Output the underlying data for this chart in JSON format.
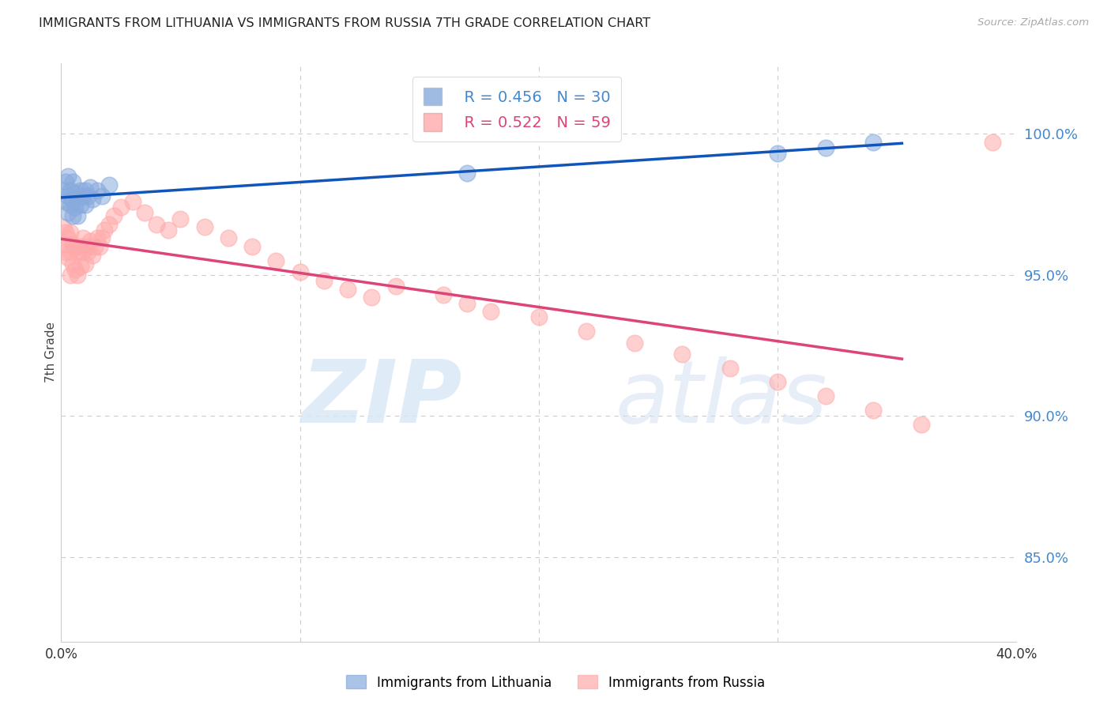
{
  "title": "IMMIGRANTS FROM LITHUANIA VS IMMIGRANTS FROM RUSSIA 7TH GRADE CORRELATION CHART",
  "source": "Source: ZipAtlas.com",
  "ylabel": "7th Grade",
  "legend_blue_label": "Immigrants from Lithuania",
  "legend_pink_label": "Immigrants from Russia",
  "legend_r_blue": "R = 0.456",
  "legend_n_blue": "N = 30",
  "legend_r_pink": "R = 0.522",
  "legend_n_pink": "N = 59",
  "blue_color": "#88AADD",
  "pink_color": "#FFAAAA",
  "blue_line_color": "#1155BB",
  "pink_line_color": "#DD4477",
  "background_color": "#FFFFFF",
  "title_color": "#222222",
  "right_label_color": "#4488CC",
  "grid_color": "#CCCCCC",
  "xmin": 0.0,
  "xmax": 0.4,
  "ymin": 0.82,
  "ymax": 1.025,
  "right_ytick_vals": [
    1.0,
    0.95,
    0.9,
    0.85
  ],
  "right_ytick_labels": [
    "100.0%",
    "95.0%",
    "90.0%",
    "85.0%"
  ],
  "lithuania_x": [
    0.001,
    0.002,
    0.002,
    0.003,
    0.003,
    0.003,
    0.004,
    0.004,
    0.005,
    0.005,
    0.005,
    0.006,
    0.006,
    0.007,
    0.007,
    0.008,
    0.008,
    0.009,
    0.01,
    0.01,
    0.011,
    0.012,
    0.013,
    0.015,
    0.017,
    0.02,
    0.17,
    0.3,
    0.32,
    0.34
  ],
  "lithuania_y": [
    0.98,
    0.983,
    0.976,
    0.985,
    0.978,
    0.972,
    0.98,
    0.975,
    0.983,
    0.977,
    0.971,
    0.979,
    0.974,
    0.977,
    0.971,
    0.98,
    0.975,
    0.978,
    0.98,
    0.975,
    0.978,
    0.981,
    0.977,
    0.98,
    0.978,
    0.982,
    0.986,
    0.993,
    0.995,
    0.997
  ],
  "russia_x": [
    0.001,
    0.001,
    0.002,
    0.002,
    0.003,
    0.003,
    0.004,
    0.004,
    0.004,
    0.005,
    0.005,
    0.006,
    0.006,
    0.007,
    0.007,
    0.008,
    0.008,
    0.009,
    0.009,
    0.01,
    0.01,
    0.011,
    0.012,
    0.013,
    0.014,
    0.015,
    0.016,
    0.017,
    0.018,
    0.02,
    0.022,
    0.025,
    0.03,
    0.035,
    0.04,
    0.045,
    0.05,
    0.06,
    0.07,
    0.08,
    0.09,
    0.1,
    0.11,
    0.12,
    0.13,
    0.14,
    0.16,
    0.17,
    0.18,
    0.2,
    0.22,
    0.24,
    0.26,
    0.28,
    0.3,
    0.32,
    0.34,
    0.36,
    0.39
  ],
  "russia_y": [
    0.967,
    0.961,
    0.965,
    0.958,
    0.963,
    0.956,
    0.965,
    0.958,
    0.95,
    0.961,
    0.954,
    0.96,
    0.952,
    0.958,
    0.95,
    0.96,
    0.953,
    0.958,
    0.963,
    0.96,
    0.954,
    0.958,
    0.962,
    0.957,
    0.96,
    0.963,
    0.96,
    0.963,
    0.966,
    0.968,
    0.971,
    0.974,
    0.976,
    0.972,
    0.968,
    0.966,
    0.97,
    0.967,
    0.963,
    0.96,
    0.955,
    0.951,
    0.948,
    0.945,
    0.942,
    0.946,
    0.943,
    0.94,
    0.937,
    0.935,
    0.93,
    0.926,
    0.922,
    0.917,
    0.912,
    0.907,
    0.902,
    0.897,
    0.997
  ]
}
